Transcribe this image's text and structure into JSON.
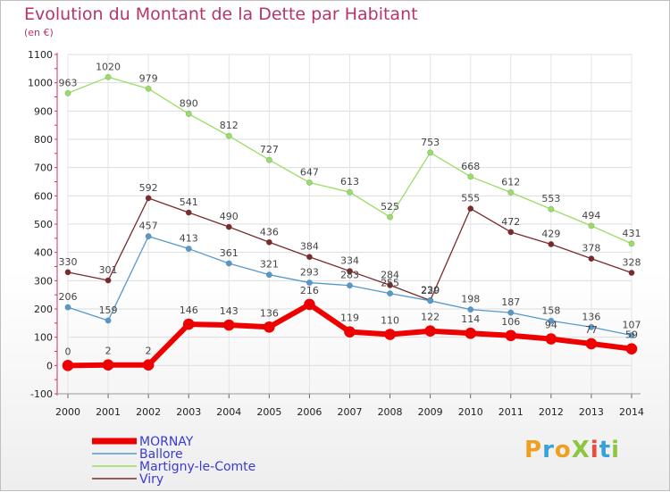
{
  "title": "Evolution du Montant de la Dette par Habitant",
  "unit_label": "(en €)",
  "brand": {
    "logo_text": "ProXiti",
    "letter_colors": [
      "#f0a020",
      "#3aa0d8",
      "#f0a020",
      "#8cc63f",
      "#e94e3a",
      "#3aa0d8",
      "#8cc63f"
    ]
  },
  "chart_data": {
    "type": "line",
    "title": "Evolution du Montant de la Dette par Habitant",
    "ylabel": "(en €)",
    "x": [
      2000,
      2001,
      2002,
      2003,
      2004,
      2005,
      2006,
      2007,
      2008,
      2009,
      2010,
      2011,
      2012,
      2013,
      2014
    ],
    "x_tick_labels": [
      "2000",
      "2001",
      "2002",
      "2003",
      "2004",
      "2005",
      "2006",
      "2007",
      "2008",
      "2009",
      "2010",
      "2011",
      "2012",
      "2013",
      "2014"
    ],
    "ylim": [
      -100,
      1100
    ],
    "y_ticks": [
      -100,
      0,
      100,
      200,
      300,
      400,
      500,
      600,
      700,
      800,
      900,
      1000,
      1100
    ],
    "y_tick_labels": [
      "-100",
      "0",
      "100",
      "200",
      "300",
      "400",
      "500",
      "600",
      "700",
      "800",
      "900",
      "1000",
      "1100"
    ],
    "grid": true,
    "legend_position": "bottom-left",
    "series": [
      {
        "name": "Martigny-le-Comte",
        "color": "#99dd66",
        "values": [
          963,
          1020,
          979,
          890,
          812,
          727,
          647,
          613,
          525,
          753,
          668,
          612,
          553,
          494,
          431
        ],
        "labels": [
          "963",
          "1020",
          "979",
          "890",
          "812",
          "727",
          "647",
          "613",
          "525",
          "753",
          "668",
          "612",
          "553",
          "494",
          "431"
        ]
      },
      {
        "name": "Viry",
        "color": "#7a2a2a",
        "values": [
          330,
          301,
          592,
          541,
          490,
          436,
          384,
          334,
          284,
          230,
          555,
          472,
          429,
          378,
          328
        ],
        "labels": [
          "330",
          "301",
          "592",
          "541",
          "490",
          "436",
          "384",
          "334",
          "284",
          "230",
          "555",
          "472",
          "429",
          "378",
          "328"
        ]
      },
      {
        "name": "Ballore",
        "color": "#5599cc",
        "values": [
          206,
          159,
          457,
          413,
          361,
          321,
          293,
          283,
          255,
          229,
          198,
          187,
          158,
          136,
          107
        ],
        "labels": [
          "206",
          "159",
          "457",
          "413",
          "361",
          "321",
          "293",
          "283",
          "255",
          "229",
          "198",
          "187",
          "158",
          "136",
          "107"
        ]
      },
      {
        "name": "MORNAY",
        "color": "#ee0000",
        "values": [
          0,
          2,
          2,
          146,
          143,
          136,
          216,
          119,
          110,
          122,
          114,
          106,
          94,
          77,
          59
        ],
        "labels": [
          "0",
          "2",
          "2",
          "146",
          "143",
          "136",
          "216",
          "119",
          "110",
          "122",
          "114",
          "106",
          "94",
          "77",
          "59"
        ]
      }
    ],
    "legend": [
      "MORNAY",
      "Ballore",
      "Martigny-le-Comte",
      "Viry"
    ]
  }
}
